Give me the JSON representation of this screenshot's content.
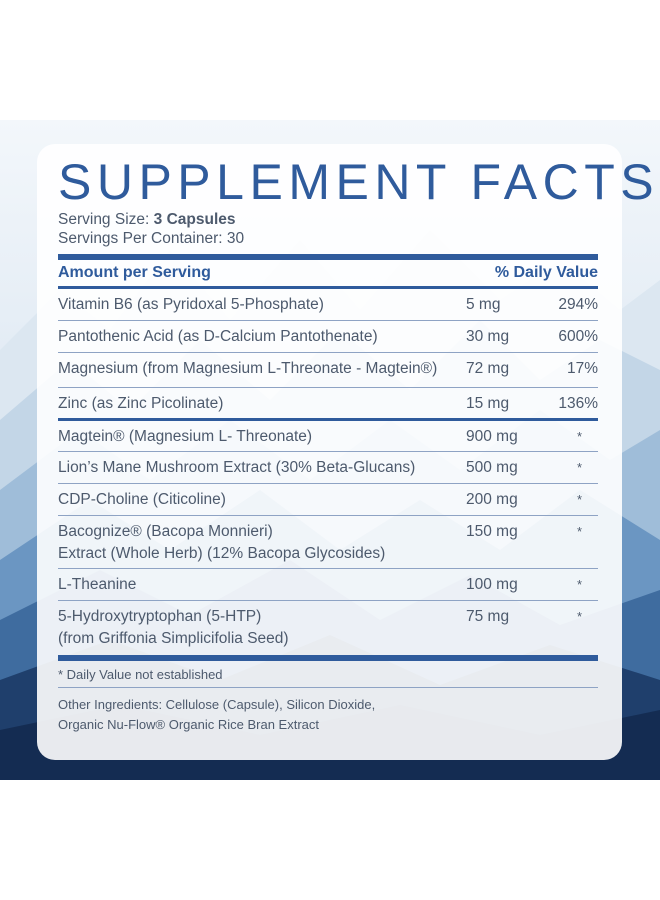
{
  "label": {
    "title": "SUPPLEMENT FACTS",
    "serving_size_label": "Serving Size: ",
    "serving_size_value": "3 Capsules",
    "servings_per_container": "Servings Per Container: 30",
    "header_left": "Amount per Serving",
    "header_right": "% Daily Value",
    "vitamins": [
      {
        "name": "Vitamin B6 (as Pyridoxal 5-Phosphate)",
        "amount": "5 mg",
        "dv": "294%"
      },
      {
        "name": "Pantothenic Acid (as D-Calcium Pantothenate)",
        "amount": "30 mg",
        "dv": "600%"
      },
      {
        "name": "Magnesium (from Magnesium L-Threonate - Magtein®)",
        "amount": "72 mg",
        "dv": "17%"
      },
      {
        "name": "Zinc (as Zinc Picolinate)",
        "amount": "15 mg",
        "dv": "136%"
      }
    ],
    "blend": [
      {
        "name": "Magtein® (Magnesium L- Threonate)",
        "amount": "900 mg",
        "dv": "*"
      },
      {
        "name": "Lion’s Mane Mushroom Extract (30% Beta-Glucans)",
        "amount": "500 mg",
        "dv": "*"
      },
      {
        "name": "CDP-Choline (Citicoline)",
        "amount": "200 mg",
        "dv": "*"
      },
      {
        "name": "Bacognize® (Bacopa Monnieri)\nExtract (Whole Herb) (12% Bacopa Glycosides)",
        "amount": "150 mg",
        "dv": "*"
      },
      {
        "name": "L-Theanine",
        "amount": "100 mg",
        "dv": "*"
      },
      {
        "name": "5-Hydroxytryptophan  (5-HTP)\n(from Griffonia Simplicifolia Seed)",
        "amount": "75 mg",
        "dv": "*"
      }
    ],
    "footnote": "* Daily Value not established",
    "other_ingredients_line1": "Other Ingredients: Cellulose (Capsule), Silicon Dioxide,",
    "other_ingredients_line2": "Organic Nu-Flow® Organic Rice Bran Extract"
  },
  "colors": {
    "accent": "#2f5b9c",
    "text": "#4d5a6d",
    "rule": "#8ea3c4"
  }
}
